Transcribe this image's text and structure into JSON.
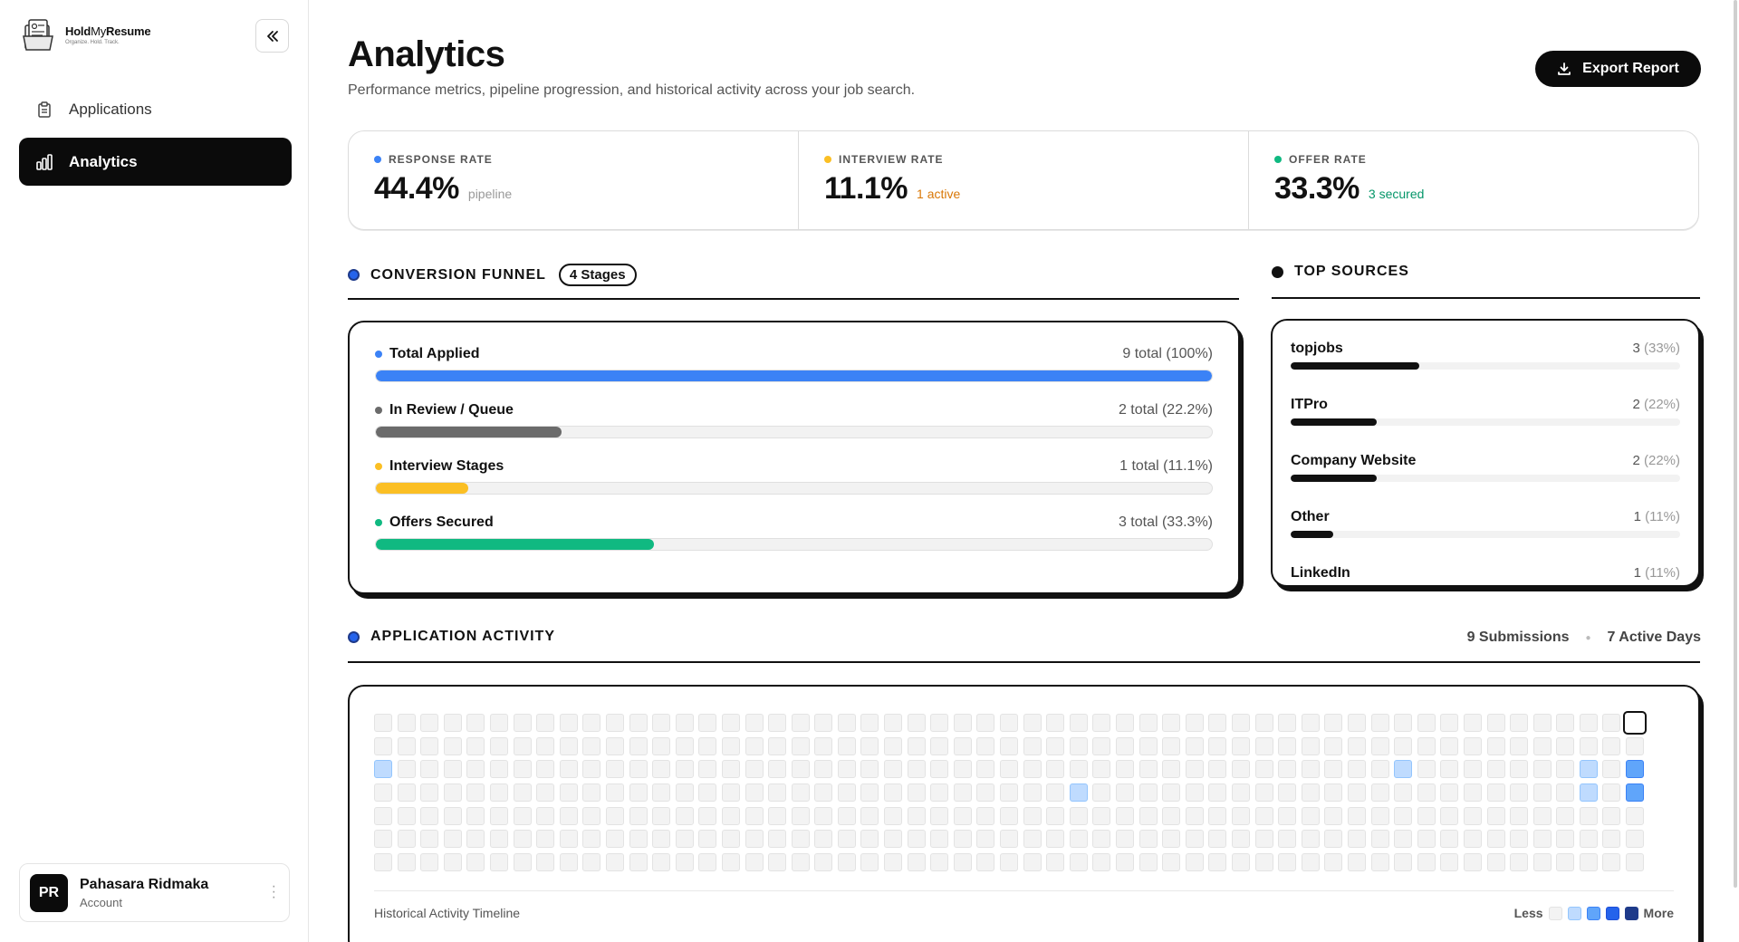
{
  "brand": {
    "name_bold": "Hold",
    "name_light": "My",
    "name_bold2": "Resume",
    "tagline": "Organize. Hold. Track."
  },
  "sidebar": {
    "items": [
      {
        "label": "Applications",
        "icon": "clipboard-icon",
        "active": false
      },
      {
        "label": "Analytics",
        "icon": "bar-chart-icon",
        "active": true
      }
    ],
    "account": {
      "initials": "PR",
      "name": "Pahasara Ridmaka",
      "subtitle": "Account"
    }
  },
  "header": {
    "title": "Analytics",
    "subtitle": "Performance metrics, pipeline progression, and historical activity across your job search.",
    "export_label": "Export Report"
  },
  "metrics": [
    {
      "label": "RESPONSE RATE",
      "value": "44.4%",
      "note": "pipeline",
      "color": "#3b82f6",
      "note_color": "#999999"
    },
    {
      "label": "INTERVIEW RATE",
      "value": "11.1%",
      "note": "1 active",
      "color": "#fbbf24",
      "note_color": "#d97706"
    },
    {
      "label": "OFFER RATE",
      "value": "33.3%",
      "note": "3 secured",
      "color": "#10b981",
      "note_color": "#059669"
    }
  ],
  "funnel": {
    "title": "CONVERSION FUNNEL",
    "badge": "4 Stages",
    "stages": [
      {
        "name": "Total Applied",
        "count": "9 total (100%)",
        "fraction": 1.0,
        "color": "#3b82f6"
      },
      {
        "name": "In Review / Queue",
        "count": "2 total (22.2%)",
        "fraction": 0.222,
        "color": "#6b6b6b"
      },
      {
        "name": "Interview Stages",
        "count": "1 total (11.1%)",
        "fraction": 0.111,
        "color": "#fbbf24"
      },
      {
        "name": "Offers Secured",
        "count": "3 total (33.3%)",
        "fraction": 0.333,
        "color": "#10b981"
      }
    ]
  },
  "sources": {
    "title": "TOP SOURCES",
    "items": [
      {
        "name": "topjobs",
        "count": "3",
        "pct": "(33%)",
        "fraction": 0.33
      },
      {
        "name": "ITPro",
        "count": "2",
        "pct": "(22%)",
        "fraction": 0.22
      },
      {
        "name": "Company Website",
        "count": "2",
        "pct": "(22%)",
        "fraction": 0.22
      },
      {
        "name": "Other",
        "count": "1",
        "pct": "(11%)",
        "fraction": 0.11
      },
      {
        "name": "LinkedIn",
        "count": "1",
        "pct": "(11%)",
        "fraction": 0.11
      }
    ]
  },
  "activity": {
    "title": "APPLICATION ACTIVITY",
    "submissions": "9 Submissions",
    "active_days": "7 Active Days",
    "timeline_label": "Historical Activity Timeline",
    "legend_less": "Less",
    "legend_more": "More",
    "weeks": 55,
    "active_cells": [
      {
        "week": 0,
        "day": 2,
        "level": 1
      },
      {
        "week": 30,
        "day": 3,
        "level": 1
      },
      {
        "week": 44,
        "day": 2,
        "level": 1
      },
      {
        "week": 52,
        "day": 2,
        "level": 1
      },
      {
        "week": 52,
        "day": 3,
        "level": 1
      },
      {
        "week": 54,
        "day": 2,
        "level": 2
      },
      {
        "week": 54,
        "day": 3,
        "level": 2
      }
    ],
    "today": {
      "week": 54,
      "day": 0
    }
  }
}
